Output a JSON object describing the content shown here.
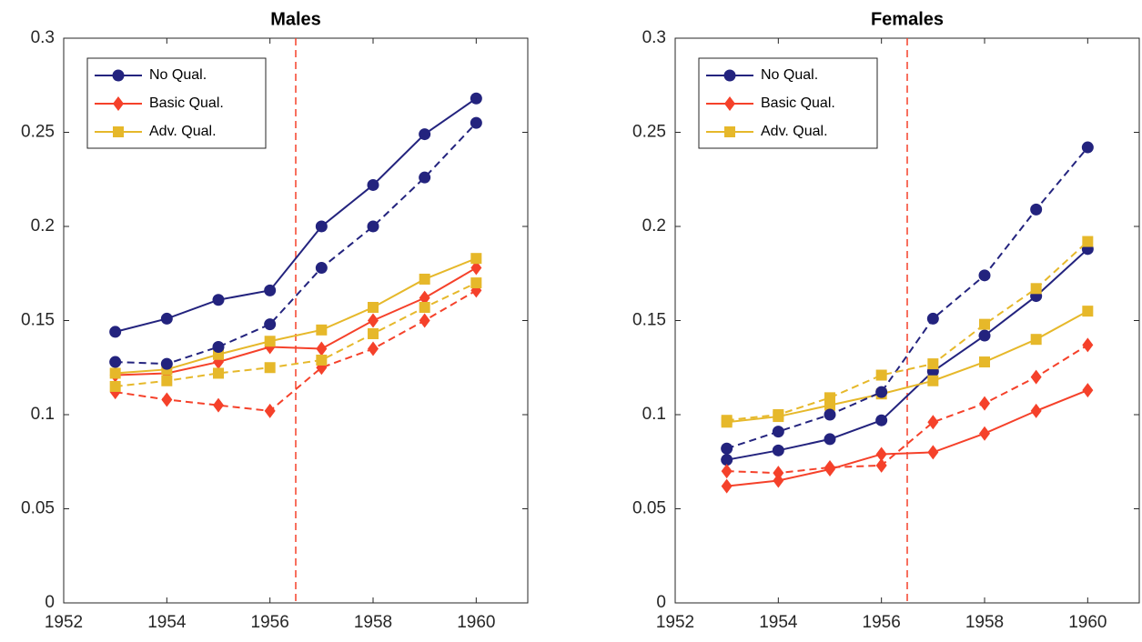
{
  "chart_data": [
    {
      "type": "line",
      "title": "Males",
      "x": [
        1953,
        1954,
        1955,
        1956,
        1957,
        1958,
        1959,
        1960
      ],
      "xlim": [
        1952,
        1961
      ],
      "xticks": [
        1952,
        1954,
        1956,
        1958,
        1960
      ],
      "ylim": [
        0,
        0.3
      ],
      "yticks": [
        0,
        0.05,
        0.1,
        0.15,
        0.2,
        0.25,
        0.3
      ],
      "vline": 1956.5,
      "vline_color": "#f5412a",
      "legend": "upper left",
      "series": [
        {
          "name": "No Qual.",
          "color": "#23237e",
          "marker": "circle",
          "dashed": false,
          "values": [
            0.144,
            0.151,
            0.161,
            0.166,
            0.2,
            0.222,
            0.249,
            0.268
          ]
        },
        {
          "name": "Basic Qual.",
          "color": "#f5412a",
          "marker": "diamond",
          "dashed": false,
          "values": [
            0.121,
            0.122,
            0.128,
            0.136,
            0.135,
            0.15,
            0.162,
            0.178
          ]
        },
        {
          "name": "Adv. Qual.",
          "color": "#e6b82a",
          "marker": "square",
          "dashed": false,
          "values": [
            0.122,
            0.124,
            0.132,
            0.139,
            0.145,
            0.157,
            0.172,
            0.183
          ]
        },
        {
          "color": "#23237e",
          "marker": "circle",
          "dashed": true,
          "values": [
            0.128,
            0.127,
            0.136,
            0.148,
            0.178,
            0.2,
            0.226,
            0.255
          ]
        },
        {
          "color": "#f5412a",
          "marker": "diamond",
          "dashed": true,
          "values": [
            0.112,
            0.108,
            0.105,
            0.102,
            0.125,
            0.135,
            0.15,
            0.166
          ]
        },
        {
          "color": "#e6b82a",
          "marker": "square",
          "dashed": true,
          "values": [
            0.115,
            0.118,
            0.122,
            0.125,
            0.129,
            0.143,
            0.157,
            0.17
          ]
        }
      ]
    },
    {
      "type": "line",
      "title": "Females",
      "x": [
        1953,
        1954,
        1955,
        1956,
        1957,
        1958,
        1959,
        1960
      ],
      "xlim": [
        1952,
        1961
      ],
      "xticks": [
        1952,
        1954,
        1956,
        1958,
        1960
      ],
      "ylim": [
        0,
        0.3
      ],
      "yticks": [
        0,
        0.05,
        0.1,
        0.15,
        0.2,
        0.25,
        0.3
      ],
      "vline": 1956.5,
      "vline_color": "#f5412a",
      "legend": "upper left",
      "series": [
        {
          "name": "No Qual.",
          "color": "#23237e",
          "marker": "circle",
          "dashed": false,
          "values": [
            0.076,
            0.081,
            0.087,
            0.097,
            0.123,
            0.142,
            0.163,
            0.188
          ]
        },
        {
          "name": "Basic Qual.",
          "color": "#f5412a",
          "marker": "diamond",
          "dashed": false,
          "values": [
            0.062,
            0.065,
            0.071,
            0.079,
            0.08,
            0.09,
            0.102,
            0.113
          ]
        },
        {
          "name": "Adv. Qual.",
          "color": "#e6b82a",
          "marker": "square",
          "dashed": false,
          "values": [
            0.096,
            0.099,
            0.105,
            0.111,
            0.118,
            0.128,
            0.14,
            0.155
          ]
        },
        {
          "color": "#23237e",
          "marker": "circle",
          "dashed": true,
          "values": [
            0.082,
            0.091,
            0.1,
            0.112,
            0.151,
            0.174,
            0.209,
            0.242
          ]
        },
        {
          "color": "#f5412a",
          "marker": "diamond",
          "dashed": true,
          "values": [
            0.07,
            0.069,
            0.072,
            0.073,
            0.096,
            0.106,
            0.12,
            0.137
          ]
        },
        {
          "color": "#e6b82a",
          "marker": "square",
          "dashed": true,
          "values": [
            0.097,
            0.1,
            0.109,
            0.121,
            0.127,
            0.148,
            0.167,
            0.192
          ]
        }
      ]
    }
  ]
}
